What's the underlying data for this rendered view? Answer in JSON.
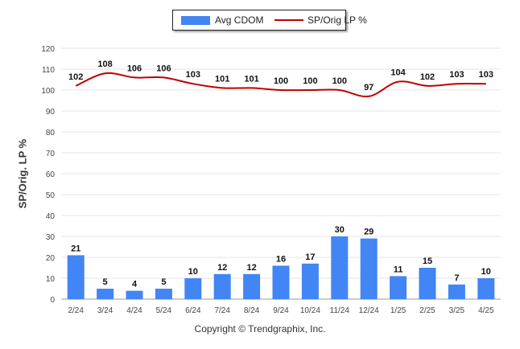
{
  "chart_data": {
    "type": "bar+line",
    "categories": [
      "2/24",
      "3/24",
      "4/24",
      "5/24",
      "6/24",
      "7/24",
      "8/24",
      "9/24",
      "10/24",
      "11/24",
      "12/24",
      "1/25",
      "2/25",
      "3/25",
      "4/25"
    ],
    "series": [
      {
        "name": "Avg CDOM",
        "type": "bar",
        "color": "#4285f4",
        "values": [
          21,
          5,
          4,
          5,
          10,
          12,
          12,
          16,
          17,
          30,
          29,
          11,
          15,
          7,
          10
        ]
      },
      {
        "name": "SP/Orig LP %",
        "type": "line",
        "color": "#c00000",
        "values": [
          102,
          108,
          106,
          106,
          103,
          101,
          101,
          100,
          100,
          100,
          97,
          104,
          102,
          103,
          103
        ]
      }
    ],
    "ylabel": "SP/Orig. LP %",
    "ylim": [
      0,
      120
    ],
    "yticks": [
      0,
      10,
      20,
      30,
      40,
      50,
      60,
      70,
      80,
      90,
      100,
      110,
      120
    ],
    "grid": true,
    "legend_position": "top-center"
  },
  "footer": {
    "copyright": "Copyright © Trendgraphix, Inc."
  }
}
